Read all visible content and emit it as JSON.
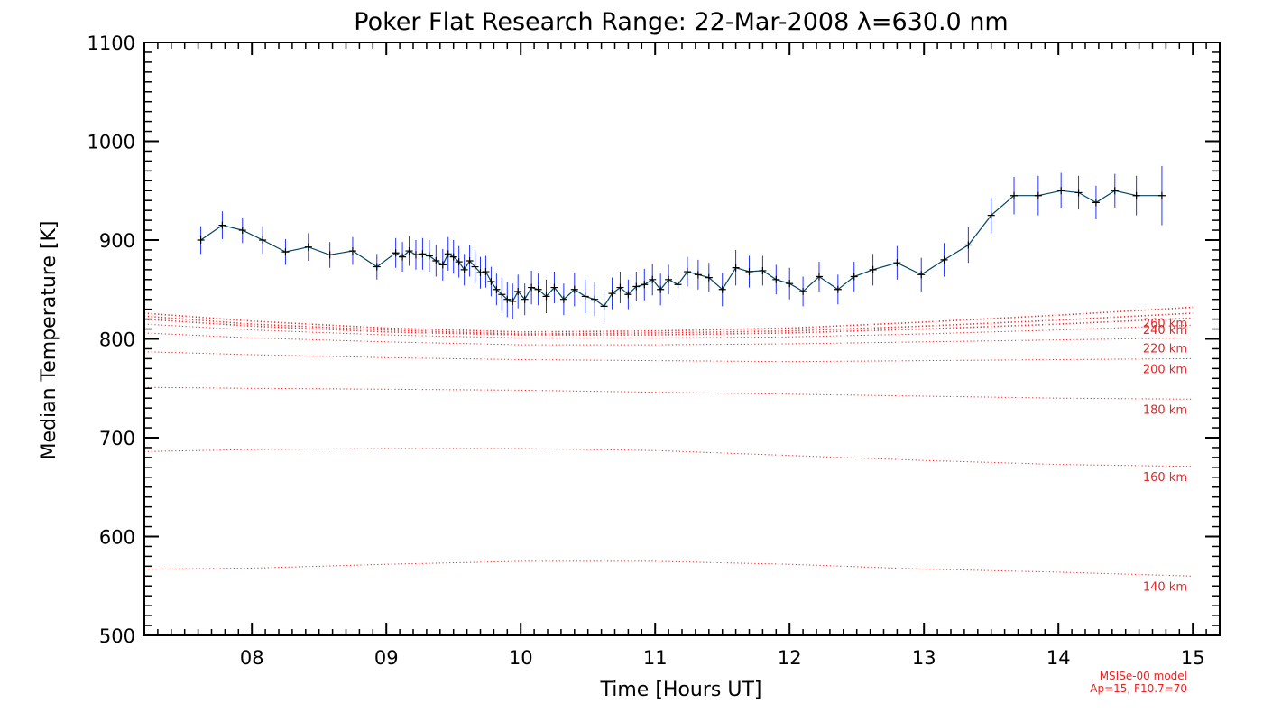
{
  "chart_data": {
    "type": "line",
    "title": "Poker Flat Research Range: 22-Mar-2008 λ=630.0 nm",
    "xlabel": "Time [Hours UT]",
    "ylabel": "Median Temperature [K]",
    "xlim": [
      7.2,
      15.2
    ],
    "ylim": [
      500,
      1100
    ],
    "xticks": [
      8,
      9,
      10,
      11,
      12,
      13,
      14,
      15
    ],
    "xtick_labels": [
      "08",
      "09",
      "10",
      "11",
      "12",
      "13",
      "14",
      "15"
    ],
    "yticks": [
      500,
      600,
      700,
      800,
      900,
      1000,
      1100
    ],
    "ytick_labels": [
      "500",
      "600",
      "700",
      "800",
      "900",
      "1000",
      "1100"
    ],
    "grid": false,
    "colors": {
      "line": "#004466",
      "error_bar": "#2233ff",
      "marker": "#000000",
      "model": "#ee2222"
    },
    "series": [
      {
        "x": [
          7.62,
          7.78,
          7.93,
          8.08,
          8.25,
          8.42,
          8.58,
          8.75,
          8.93,
          9.07,
          9.12,
          9.17,
          9.22,
          9.27,
          9.32,
          9.37,
          9.42,
          9.46,
          9.5,
          9.54,
          9.58,
          9.62,
          9.66,
          9.7,
          9.74,
          9.78,
          9.82,
          9.86,
          9.9,
          9.94,
          9.98,
          10.03,
          10.08,
          10.13,
          10.19,
          10.25,
          10.32,
          10.4,
          10.48,
          10.55,
          10.62,
          10.68,
          10.74,
          10.8,
          10.86,
          10.92,
          10.98,
          11.04,
          11.1,
          11.17,
          11.24,
          11.32,
          11.4,
          11.5,
          11.6,
          11.7,
          11.8,
          11.9,
          12.0,
          12.1,
          12.22,
          12.36,
          12.48,
          12.62,
          12.8,
          12.98,
          13.15,
          13.33,
          13.5,
          13.67,
          13.85,
          14.02,
          14.15,
          14.28,
          14.42,
          14.58,
          14.77
        ],
        "y": [
          900,
          915,
          910,
          900,
          888,
          893,
          885,
          889,
          873,
          887,
          883,
          889,
          885,
          886,
          884,
          879,
          875,
          886,
          883,
          878,
          870,
          879,
          873,
          867,
          868,
          858,
          850,
          845,
          840,
          838,
          848,
          840,
          852,
          850,
          843,
          852,
          840,
          850,
          843,
          840,
          833,
          846,
          852,
          845,
          853,
          855,
          860,
          850,
          860,
          855,
          868,
          865,
          862,
          850,
          872,
          868,
          869,
          860,
          856,
          848,
          863,
          850,
          863,
          870,
          877,
          865,
          880,
          895,
          925,
          945,
          945,
          950,
          948,
          938,
          950,
          945,
          945
        ],
        "err": [
          14,
          14,
          13,
          14,
          13,
          14,
          13,
          14,
          13,
          15,
          15,
          15,
          15,
          16,
          16,
          16,
          16,
          17,
          17,
          16,
          16,
          16,
          16,
          16,
          16,
          15,
          16,
          17,
          18,
          18,
          17,
          16,
          17,
          16,
          17,
          16,
          16,
          17,
          17,
          17,
          17,
          16,
          16,
          15,
          15,
          16,
          16,
          16,
          15,
          15,
          15,
          15,
          15,
          17,
          18,
          16,
          15,
          15,
          16,
          15,
          15,
          15,
          15,
          16,
          17,
          17,
          17,
          18,
          18,
          19,
          20,
          18,
          17,
          17,
          17,
          20,
          30
        ]
      }
    ],
    "model_curves": [
      {
        "label": "140 km",
        "x": [
          7.2,
          8.0,
          9.0,
          10.0,
          11.0,
          12.0,
          13.0,
          14.0,
          15.0
        ],
        "y": [
          567,
          568,
          572,
          575,
          575,
          572,
          567,
          564,
          560
        ]
      },
      {
        "label": "160 km",
        "x": [
          7.2,
          8.0,
          9.0,
          10.0,
          11.0,
          12.0,
          13.0,
          14.0,
          15.0
        ],
        "y": [
          686,
          688,
          689,
          689,
          687,
          682,
          677,
          673,
          671
        ]
      },
      {
        "label": "180 km",
        "x": [
          7.2,
          8.0,
          9.0,
          10.0,
          11.0,
          12.0,
          13.0,
          14.0,
          15.0
        ],
        "y": [
          751,
          750,
          749,
          748,
          746,
          744,
          742,
          740,
          739
        ]
      },
      {
        "label": "200 km",
        "x": [
          7.2,
          8.0,
          9.0,
          10.0,
          11.0,
          12.0,
          13.0,
          14.0,
          15.0
        ],
        "y": [
          787,
          784,
          781,
          779,
          778,
          777,
          778,
          779,
          780
        ]
      },
      {
        "label": "220 km",
        "x": [
          7.2,
          8.0,
          9.0,
          10.0,
          11.0,
          12.0,
          13.0,
          14.0,
          15.0
        ],
        "y": [
          806,
          801,
          797,
          794,
          794,
          795,
          797,
          799,
          801
        ]
      },
      {
        "label": "240 km",
        "x": [
          7.2,
          8.0,
          9.0,
          10.0,
          11.0,
          12.0,
          13.0,
          14.0,
          15.0
        ],
        "y": [
          815,
          809,
          804,
          801,
          801,
          802,
          805,
          809,
          814
        ]
      },
      {
        "label": "260 km",
        "x": [
          7.2,
          8.0,
          9.0,
          10.0,
          11.0,
          12.0,
          13.0,
          14.0,
          15.0
        ],
        "y": [
          820,
          813,
          807,
          804,
          804,
          806,
          810,
          815,
          821
        ]
      },
      {
        "label": "",
        "x": [
          7.2,
          8.0,
          9.0,
          10.0,
          11.0,
          12.0,
          13.0,
          14.0,
          15.0
        ],
        "y": [
          823,
          815,
          809,
          805,
          806,
          808,
          813,
          819,
          826
        ]
      },
      {
        "label": "",
        "x": [
          7.2,
          8.0,
          9.0,
          10.0,
          11.0,
          12.0,
          13.0,
          14.0,
          15.0
        ],
        "y": [
          826,
          818,
          811,
          807,
          808,
          811,
          817,
          824,
          832
        ]
      }
    ],
    "model_note": [
      "MSISe-00 model",
      "Ap=15, F10.7=70"
    ]
  }
}
